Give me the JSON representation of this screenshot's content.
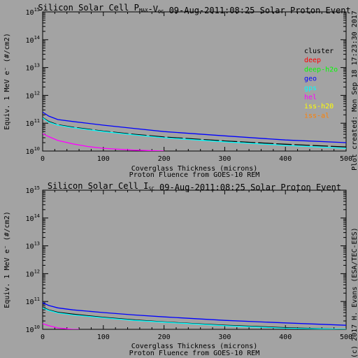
{
  "chart_data": [
    {
      "type": "line",
      "title": "Silicon Solar Cell Pₘₐₓ-Vₒc 09-Aug-2011:08:25 Solar Proton Event",
      "title_parts": {
        "prefix": "Silicon Solar Cell P",
        "sub1": "MAX",
        "mid": "-V",
        "sub2": "OC",
        "suffix": " 09-Aug-2011:08:25 Solar Proton Event"
      },
      "xlabel": "Coverglass Thickness (microns)",
      "subtitle": "Proton Fluence from GOES-10 REM",
      "ylabel": "Equiv. 1 MeV e⁻ (#/cm2)",
      "y_scale": "log",
      "xlim": [
        0,
        500
      ],
      "ylim": [
        10000000000.0,
        1000000000000000.0
      ],
      "x_ticks": [
        "0",
        "100",
        "200",
        "300",
        "400",
        "500"
      ],
      "y_ticks": [
        {
          "base": "10",
          "exp": "10"
        },
        {
          "base": "10",
          "exp": "11"
        },
        {
          "base": "10",
          "exp": "12"
        },
        {
          "base": "10",
          "exp": "13"
        },
        {
          "base": "10",
          "exp": "14"
        },
        {
          "base": "10",
          "exp": "15"
        }
      ],
      "legend_position": "right",
      "legend": [
        {
          "name": "cluster",
          "color": "#000000"
        },
        {
          "name": "deep",
          "color": "#ff0000"
        },
        {
          "name": "deep-h2o",
          "color": "#00ff00"
        },
        {
          "name": "geo",
          "color": "#0000ff"
        },
        {
          "name": "gps",
          "color": "#00ffff"
        },
        {
          "name": "hel",
          "color": "#ff00ff"
        },
        {
          "name": "iss-h20",
          "color": "#ffff00"
        },
        {
          "name": "iss-al",
          "color": "#ff8000"
        }
      ],
      "series": [
        {
          "name": "geo",
          "color": "#0000ff",
          "dash": false,
          "x": [
            0,
            10,
            25,
            50,
            100,
            150,
            200,
            300,
            400,
            500
          ],
          "y": [
            250000000000.0,
            180000000000.0,
            135000000000.0,
            115000000000.0,
            85000000000.0,
            65000000000.0,
            50000000000.0,
            35000000000.0,
            25000000000.0,
            20000000000.0
          ]
        },
        {
          "name": "cluster",
          "color": "#000000",
          "dash": true,
          "x": [
            0,
            10,
            25,
            50,
            100,
            150,
            200,
            300,
            400,
            500
          ],
          "y": [
            160000000000.0,
            115000000000.0,
            88000000000.0,
            72000000000.0,
            52000000000.0,
            40000000000.0,
            32000000000.0,
            23000000000.0,
            17500000000.0,
            14000000000.0
          ]
        },
        {
          "name": "gps",
          "color": "#00ffff",
          "dash": false,
          "x": [
            0,
            10,
            25,
            50,
            100,
            150,
            200,
            300,
            400,
            500
          ],
          "y": [
            155000000000.0,
            110000000000.0,
            85000000000.0,
            69000000000.0,
            50000000000.0,
            38000000000.0,
            30000000000.0,
            21500000000.0,
            16000000000.0,
            12500000000.0
          ]
        },
        {
          "name": "hel",
          "color": "#ff00ff",
          "dash": false,
          "x": [
            0,
            10,
            25,
            50,
            75,
            100,
            150,
            200
          ],
          "y": [
            42000000000.0,
            33000000000.0,
            24000000000.0,
            18000000000.0,
            14500000000.0,
            12500000000.0,
            10800000000.0,
            10000000000.0
          ]
        }
      ]
    },
    {
      "type": "line",
      "title": "Silicon Solar Cell Iₛₜ 09-Aug-2011:08:25 Solar Proton Event",
      "title_parts": {
        "prefix": "Silicon Solar Cell I",
        "sub1": "SC",
        "mid": "",
        "sub2": "",
        "suffix": " 09-Aug-2011:08:25 Solar Proton Event"
      },
      "xlabel": "Coverglass Thickness (microns)",
      "subtitle": "Proton Fluence from GOES-10 REM",
      "ylabel": "Equiv. 1 MeV e⁻ (#/cm2)",
      "y_scale": "log",
      "xlim": [
        0,
        500
      ],
      "ylim": [
        10000000000.0,
        1000000000000000.0
      ],
      "x_ticks": [
        "0",
        "100",
        "200",
        "300",
        "400",
        "500"
      ],
      "y_ticks": [
        {
          "base": "10",
          "exp": "10"
        },
        {
          "base": "10",
          "exp": "11"
        },
        {
          "base": "10",
          "exp": "12"
        },
        {
          "base": "10",
          "exp": "13"
        },
        {
          "base": "10",
          "exp": "14"
        },
        {
          "base": "10",
          "exp": "15"
        }
      ],
      "series": [
        {
          "name": "geo",
          "color": "#0000ff",
          "dash": false,
          "x": [
            0,
            10,
            25,
            50,
            100,
            150,
            200,
            300,
            400,
            500
          ],
          "y": [
            90000000000.0,
            72000000000.0,
            59000000000.0,
            50000000000.0,
            40000000000.0,
            33000000000.0,
            28000000000.0,
            21000000000.0,
            17000000000.0,
            14000000000.0
          ]
        },
        {
          "name": "cluster",
          "color": "#000000",
          "dash": false,
          "x": [
            0,
            10,
            25,
            50,
            100,
            150,
            200,
            300,
            400,
            500
          ],
          "y": [
            62000000000.0,
            50000000000.0,
            41000000000.0,
            35000000000.0,
            27000000000.0,
            22000000000.0,
            18500000000.0,
            14000000000.0,
            11500000000.0,
            10000000000.0
          ]
        },
        {
          "name": "gps",
          "color": "#00ffff",
          "dash": false,
          "x": [
            0,
            10,
            25,
            50,
            100,
            150,
            200,
            300,
            400,
            500
          ],
          "y": [
            59000000000.0,
            48000000000.0,
            39000000000.0,
            33000000000.0,
            26000000000.0,
            21000000000.0,
            18000000000.0,
            13500000000.0,
            11000000000.0,
            9800000000.0
          ]
        },
        {
          "name": "hel",
          "color": "#ff00ff",
          "dash": false,
          "x": [
            0,
            10,
            25,
            50,
            60
          ],
          "y": [
            16000000000.0,
            13500000000.0,
            11200000000.0,
            10000000000.0,
            9800000000.0
          ]
        }
      ]
    }
  ],
  "side_text": {
    "plot_created": "Plot created: Mon Sep 18 17:23:30 2017",
    "credit": "(c) 2017 H. Evans (ESA/TEC-EES)"
  }
}
